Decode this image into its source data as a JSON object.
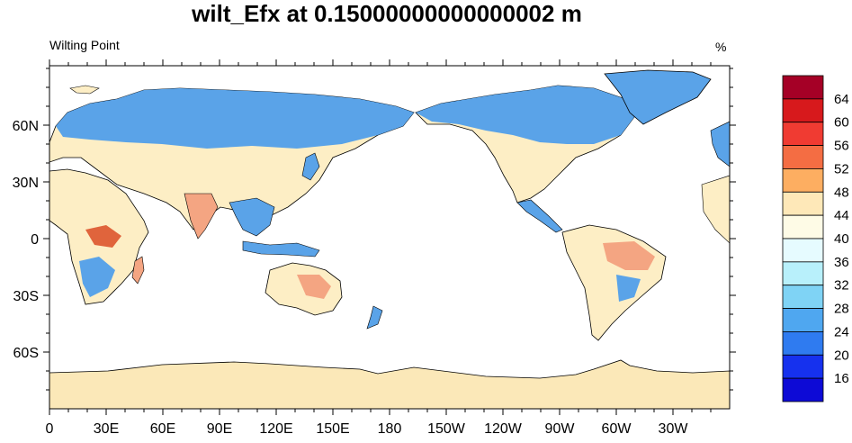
{
  "title": "wilt_Efx at 0.15000000000000002 m",
  "subtitle": "Wilting Point",
  "units": "%",
  "x_ticks": [
    "0",
    "30E",
    "60E",
    "90E",
    "120E",
    "150E",
    "180",
    "150W",
    "120W",
    "90W",
    "60W",
    "30W"
  ],
  "y_ticks": [
    "60N",
    "30N",
    "0",
    "30S",
    "60S"
  ],
  "colorbar": {
    "labels": [
      "64",
      "60",
      "56",
      "52",
      "48",
      "44",
      "40",
      "36",
      "32",
      "28",
      "24",
      "20",
      "16"
    ],
    "colors": [
      "#a50026",
      "#d7191c",
      "#f03b32",
      "#f46d43",
      "#fdae61",
      "#fee8b8",
      "#fefbe6",
      "#e6fbff",
      "#b8f0fb",
      "#7fd3f5",
      "#4fa7f0",
      "#2f7bf0",
      "#1631ee",
      "#0d0ad6"
    ]
  },
  "map": {
    "ocean_color": "#ffffff",
    "land_colors": {
      "dry": "#fdeec5",
      "wet": "#5aa3e8",
      "very_wet": "#3c82e0",
      "warm": "#f4a582",
      "hot": "#e0643c"
    },
    "antarctica_color": "#fbe8b8"
  }
}
